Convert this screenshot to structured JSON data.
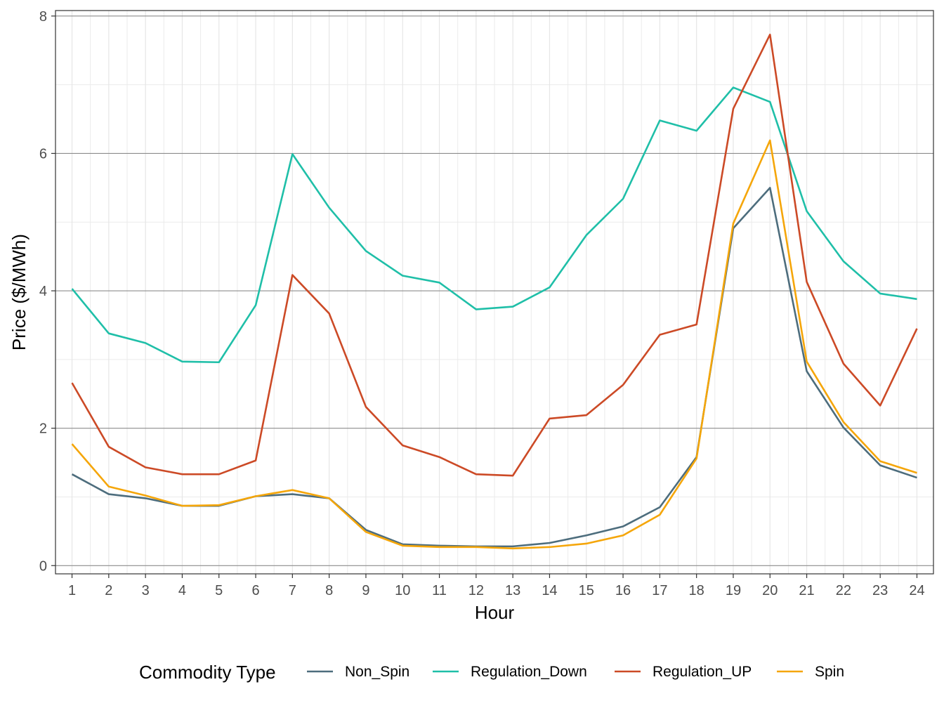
{
  "chart_data": {
    "type": "line",
    "title": "",
    "xlabel": "Hour",
    "ylabel": "Price ($/MWh)",
    "x": [
      1,
      2,
      3,
      4,
      5,
      6,
      7,
      8,
      9,
      10,
      11,
      12,
      13,
      14,
      15,
      16,
      17,
      18,
      19,
      20,
      21,
      22,
      23,
      24
    ],
    "x_tick_labels": [
      "1",
      "2",
      "3",
      "4",
      "5",
      "6",
      "7",
      "8",
      "9",
      "10",
      "11",
      "12",
      "13",
      "14",
      "15",
      "16",
      "17",
      "18",
      "19",
      "20",
      "21",
      "22",
      "23",
      "24"
    ],
    "y_ticks": [
      0,
      2,
      4,
      6,
      8
    ],
    "y_tick_labels": [
      "0",
      "2",
      "4",
      "6",
      "8"
    ],
    "ylim": [
      -0.12,
      8.08
    ],
    "xlim": [
      0.55,
      24.45
    ],
    "grid": true,
    "legend_position": "bottom",
    "legend_title": "Commodity Type",
    "series": [
      {
        "name": "Non_Spin",
        "color": "#4d6d7d",
        "values": [
          1.33,
          1.04,
          0.98,
          0.87,
          0.87,
          1.01,
          1.04,
          0.98,
          0.52,
          0.31,
          0.29,
          0.28,
          0.28,
          0.33,
          0.44,
          0.57,
          0.85,
          1.58,
          4.91,
          5.5,
          2.83,
          2.01,
          1.46,
          1.28
        ]
      },
      {
        "name": "Regulation_Down",
        "color": "#1fbfa8",
        "values": [
          4.03,
          3.38,
          3.24,
          2.97,
          2.96,
          3.79,
          5.99,
          5.21,
          4.58,
          4.22,
          4.12,
          3.73,
          3.77,
          4.05,
          4.81,
          5.34,
          6.48,
          6.33,
          6.96,
          6.75,
          5.16,
          4.43,
          3.96,
          3.88
        ]
      },
      {
        "name": "Regulation_UP",
        "color": "#cc4a26",
        "values": [
          2.66,
          1.73,
          1.43,
          1.33,
          1.33,
          1.53,
          4.23,
          3.67,
          2.31,
          1.75,
          1.58,
          1.33,
          1.31,
          2.14,
          2.19,
          2.63,
          3.36,
          3.51,
          6.65,
          7.73,
          4.13,
          2.94,
          2.33,
          3.45
        ]
      },
      {
        "name": "Spin",
        "color": "#f5a60a",
        "values": [
          1.77,
          1.15,
          1.02,
          0.87,
          0.88,
          1.01,
          1.1,
          0.98,
          0.49,
          0.29,
          0.27,
          0.27,
          0.25,
          0.27,
          0.32,
          0.44,
          0.74,
          1.56,
          4.98,
          6.19,
          2.97,
          2.09,
          1.52,
          1.35
        ]
      }
    ]
  }
}
